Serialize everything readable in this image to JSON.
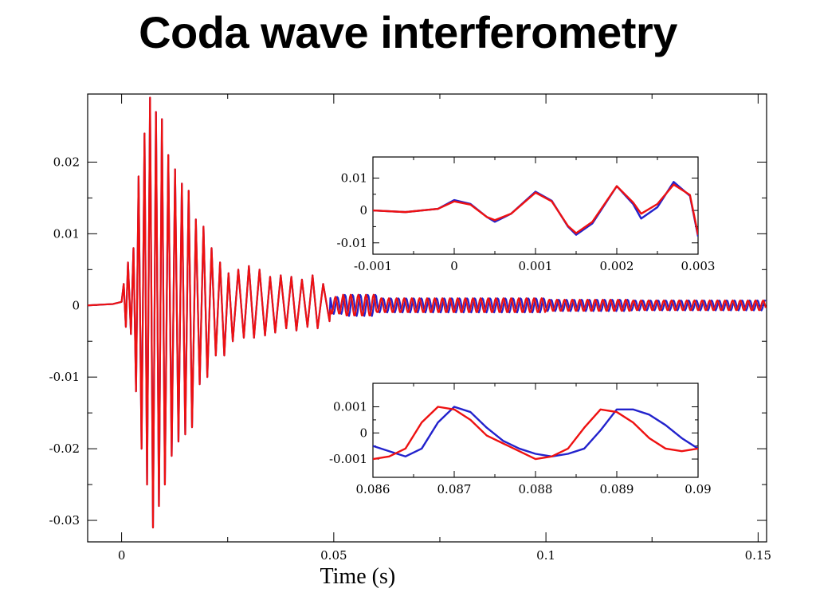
{
  "slide": {
    "title": "Coda wave interferometry"
  },
  "colors": {
    "trace_a": "#2222cc",
    "trace_b": "#ee1111",
    "axis": "#000000"
  },
  "chart_data": [
    {
      "type": "line",
      "title": "",
      "xlabel": "Time (s)",
      "ylabel": "",
      "xlim": [
        -0.008,
        0.152
      ],
      "ylim": [
        -0.033,
        0.0295
      ],
      "xticks": [
        0,
        0.05,
        0.1,
        0.15
      ],
      "xtick_labels": [
        "0",
        "0.05",
        "0.1",
        "0.15"
      ],
      "yticks": [
        -0.03,
        -0.02,
        -0.01,
        0,
        0.01,
        0.02
      ],
      "ytick_labels": [
        "-0.03",
        "-0.02",
        "-0.01",
        "0",
        "0.01",
        "0.02"
      ],
      "grid": false,
      "legend": "none",
      "description_free_series": [
        {
          "color": "#2222cc",
          "points": [
            [
              -0.008,
              0
            ],
            [
              -0.002,
              0.0002
            ],
            [
              0,
              0.0005
            ],
            [
              0.0005,
              0.003
            ],
            [
              0.001,
              -0.003
            ],
            [
              0.0015,
              0.006
            ],
            [
              0.0022,
              -0.004
            ],
            [
              0.0028,
              0.008
            ],
            [
              0.0034,
              -0.012
            ],
            [
              0.004,
              0.018
            ],
            [
              0.0047,
              -0.02
            ],
            [
              0.0054,
              0.024
            ],
            [
              0.006,
              -0.025
            ],
            [
              0.0067,
              0.029
            ],
            [
              0.0074,
              -0.031
            ],
            [
              0.0081,
              0.027
            ],
            [
              0.0088,
              -0.028
            ],
            [
              0.0095,
              0.026
            ],
            [
              0.0102,
              -0.025
            ],
            [
              0.011,
              0.021
            ],
            [
              0.0118,
              -0.021
            ],
            [
              0.0126,
              0.019
            ],
            [
              0.0134,
              -0.019
            ],
            [
              0.0142,
              0.017
            ],
            [
              0.015,
              -0.018
            ],
            [
              0.0158,
              0.016
            ],
            [
              0.0166,
              -0.017
            ],
            [
              0.0175,
              0.012
            ],
            [
              0.0184,
              -0.011
            ],
            [
              0.0193,
              0.011
            ],
            [
              0.0202,
              -0.01
            ],
            [
              0.0212,
              0.008
            ],
            [
              0.0222,
              -0.007
            ],
            [
              0.0232,
              0.006
            ],
            [
              0.0242,
              -0.007
            ],
            [
              0.0252,
              0.0045
            ],
            [
              0.0262,
              -0.005
            ],
            [
              0.0275,
              0.005
            ],
            [
              0.0288,
              -0.0045
            ],
            [
              0.03,
              0.0055
            ],
            [
              0.0312,
              -0.0045
            ],
            [
              0.0325,
              0.005
            ],
            [
              0.0338,
              -0.0042
            ],
            [
              0.035,
              0.004
            ],
            [
              0.0362,
              -0.0038
            ],
            [
              0.0375,
              0.0042
            ],
            [
              0.0388,
              -0.0032
            ],
            [
              0.04,
              0.004
            ],
            [
              0.0412,
              -0.0035
            ],
            [
              0.0425,
              0.0036
            ],
            [
              0.0438,
              -0.003
            ],
            [
              0.045,
              0.0042
            ],
            [
              0.0462,
              -0.0032
            ],
            [
              0.0475,
              0.003
            ],
            [
              0.049,
              -0.0022
            ],
            [
              0.052,
              0.0012
            ],
            [
              0.06,
              0.0015
            ],
            [
              0.08,
              0.001
            ],
            [
              0.1,
              0.001
            ],
            [
              0.12,
              0.0008
            ],
            [
              0.152,
              0.0007
            ]
          ]
        },
        {
          "color": "#ee1111",
          "points": [
            [
              -0.008,
              0
            ],
            [
              -0.002,
              0.0002
            ],
            [
              0,
              0.0005
            ],
            [
              0.0005,
              0.003
            ],
            [
              0.001,
              -0.003
            ],
            [
              0.0015,
              0.006
            ],
            [
              0.0022,
              -0.004
            ],
            [
              0.0028,
              0.008
            ],
            [
              0.0034,
              -0.012
            ],
            [
              0.004,
              0.018
            ],
            [
              0.0047,
              -0.02
            ],
            [
              0.0054,
              0.024
            ],
            [
              0.006,
              -0.025
            ],
            [
              0.0067,
              0.029
            ],
            [
              0.0074,
              -0.031
            ],
            [
              0.0081,
              0.027
            ],
            [
              0.0088,
              -0.028
            ],
            [
              0.0095,
              0.026
            ],
            [
              0.0102,
              -0.025
            ],
            [
              0.011,
              0.021
            ],
            [
              0.0118,
              -0.021
            ],
            [
              0.0126,
              0.019
            ],
            [
              0.0134,
              -0.019
            ],
            [
              0.0142,
              0.017
            ],
            [
              0.015,
              -0.018
            ],
            [
              0.0158,
              0.016
            ],
            [
              0.0166,
              -0.017
            ],
            [
              0.0175,
              0.012
            ],
            [
              0.0184,
              -0.011
            ],
            [
              0.0193,
              0.011
            ],
            [
              0.0202,
              -0.01
            ],
            [
              0.0212,
              0.008
            ],
            [
              0.0222,
              -0.007
            ],
            [
              0.0232,
              0.006
            ],
            [
              0.0242,
              -0.007
            ],
            [
              0.0252,
              0.0045
            ],
            [
              0.0262,
              -0.005
            ],
            [
              0.0275,
              0.005
            ],
            [
              0.0288,
              -0.0045
            ],
            [
              0.03,
              0.0055
            ],
            [
              0.0312,
              -0.0045
            ],
            [
              0.0325,
              0.005
            ],
            [
              0.0338,
              -0.0042
            ],
            [
              0.035,
              0.004
            ],
            [
              0.0362,
              -0.0038
            ],
            [
              0.0375,
              0.0042
            ],
            [
              0.0388,
              -0.0032
            ],
            [
              0.04,
              0.004
            ],
            [
              0.0412,
              -0.0035
            ],
            [
              0.0425,
              0.0036
            ],
            [
              0.0438,
              -0.003
            ],
            [
              0.045,
              0.0042
            ],
            [
              0.0462,
              -0.0032
            ],
            [
              0.0475,
              0.003
            ],
            [
              0.049,
              -0.0022
            ],
            [
              0.052,
              0.0012
            ],
            [
              0.06,
              0.0015
            ],
            [
              0.08,
              0.001
            ],
            [
              0.1,
              0.001
            ],
            [
              0.12,
              0.0008
            ],
            [
              0.152,
              0.0007
            ]
          ]
        }
      ]
    },
    {
      "type": "line",
      "title": "",
      "xlim": [
        -0.001,
        0.003
      ],
      "ylim": [
        -0.0135,
        0.0165
      ],
      "xticks": [
        -0.001,
        0,
        0.001,
        0.002,
        0.003
      ],
      "xtick_labels": [
        "-0.001",
        "0",
        "0.001",
        "0.002",
        "0.003"
      ],
      "yticks": [
        -0.01,
        0,
        0.01
      ],
      "ytick_labels": [
        "-0.01",
        "0",
        "0.01"
      ],
      "grid": false,
      "legend": "none",
      "series": [
        {
          "color": "#2222cc",
          "points": [
            [
              -0.001,
              0
            ],
            [
              -0.0006,
              -0.0005
            ],
            [
              -0.0002,
              0.0005
            ],
            [
              0,
              0.0032
            ],
            [
              0.0002,
              0.002
            ],
            [
              0.0004,
              -0.002
            ],
            [
              0.0005,
              -0.0035
            ],
            [
              0.0007,
              -0.001
            ],
            [
              0.001,
              0.0058
            ],
            [
              0.0012,
              0.003
            ],
            [
              0.0014,
              -0.005
            ],
            [
              0.0015,
              -0.0075
            ],
            [
              0.0017,
              -0.004
            ],
            [
              0.002,
              0.0075
            ],
            [
              0.0022,
              0.002
            ],
            [
              0.0023,
              -0.0025
            ],
            [
              0.0025,
              0.001
            ],
            [
              0.0027,
              0.0088
            ],
            [
              0.0029,
              0.0045
            ],
            [
              0.003,
              -0.008
            ]
          ]
        },
        {
          "color": "#ee1111",
          "points": [
            [
              -0.001,
              0
            ],
            [
              -0.0006,
              -0.0005
            ],
            [
              -0.0002,
              0.0005
            ],
            [
              0,
              0.0028
            ],
            [
              0.0002,
              0.0018
            ],
            [
              0.0004,
              -0.002
            ],
            [
              0.0005,
              -0.003
            ],
            [
              0.0007,
              -0.001
            ],
            [
              0.001,
              0.0055
            ],
            [
              0.0012,
              0.0028
            ],
            [
              0.0014,
              -0.0048
            ],
            [
              0.0015,
              -0.007
            ],
            [
              0.0017,
              -0.0035
            ],
            [
              0.002,
              0.0075
            ],
            [
              0.0022,
              0.0025
            ],
            [
              0.0023,
              -0.001
            ],
            [
              0.0025,
              0.002
            ],
            [
              0.0027,
              0.008
            ],
            [
              0.0029,
              0.0048
            ],
            [
              0.003,
              -0.0075
            ]
          ]
        }
      ]
    },
    {
      "type": "line",
      "title": "",
      "xlim": [
        0.086,
        0.09
      ],
      "ylim": [
        -0.0017,
        0.0019
      ],
      "xticks": [
        0.086,
        0.087,
        0.088,
        0.089,
        0.09
      ],
      "xtick_labels": [
        "0.086",
        "0.087",
        "0.088",
        "0.089",
        "0.09"
      ],
      "yticks": [
        -0.001,
        0,
        0.001
      ],
      "ytick_labels": [
        "-0.001",
        "0",
        "0.001"
      ],
      "grid": false,
      "legend": "none",
      "series": [
        {
          "color": "#2222cc",
          "points": [
            [
              0.086,
              -0.0005
            ],
            [
              0.0862,
              -0.0007
            ],
            [
              0.0864,
              -0.0009
            ],
            [
              0.0866,
              -0.0006
            ],
            [
              0.0868,
              0.0004
            ],
            [
              0.087,
              0.001
            ],
            [
              0.0872,
              0.0008
            ],
            [
              0.0874,
              0.0002
            ],
            [
              0.0876,
              -0.0003
            ],
            [
              0.0878,
              -0.0006
            ],
            [
              0.088,
              -0.0008
            ],
            [
              0.0882,
              -0.0009
            ],
            [
              0.0884,
              -0.0008
            ],
            [
              0.0886,
              -0.0006
            ],
            [
              0.0888,
              0.0001
            ],
            [
              0.089,
              0.0009
            ],
            [
              0.0892,
              0.0009
            ],
            [
              0.0894,
              0.0007
            ],
            [
              0.0896,
              0.0003
            ],
            [
              0.0898,
              -0.0002
            ],
            [
              0.09,
              -0.0006
            ]
          ]
        },
        {
          "color": "#ee1111",
          "points": [
            [
              0.086,
              -0.001
            ],
            [
              0.0862,
              -0.0009
            ],
            [
              0.0864,
              -0.0006
            ],
            [
              0.0866,
              0.0004
            ],
            [
              0.0868,
              0.001
            ],
            [
              0.087,
              0.0009
            ],
            [
              0.0872,
              0.0005
            ],
            [
              0.0874,
              -0.0001
            ],
            [
              0.0876,
              -0.0004
            ],
            [
              0.0878,
              -0.0007
            ],
            [
              0.088,
              -0.001
            ],
            [
              0.0882,
              -0.0009
            ],
            [
              0.0884,
              -0.0006
            ],
            [
              0.0886,
              0.0002
            ],
            [
              0.0888,
              0.0009
            ],
            [
              0.089,
              0.0008
            ],
            [
              0.0892,
              0.0004
            ],
            [
              0.0894,
              -0.0002
            ],
            [
              0.0896,
              -0.0006
            ],
            [
              0.0898,
              -0.0007
            ],
            [
              0.09,
              -0.0006
            ]
          ]
        }
      ]
    }
  ]
}
